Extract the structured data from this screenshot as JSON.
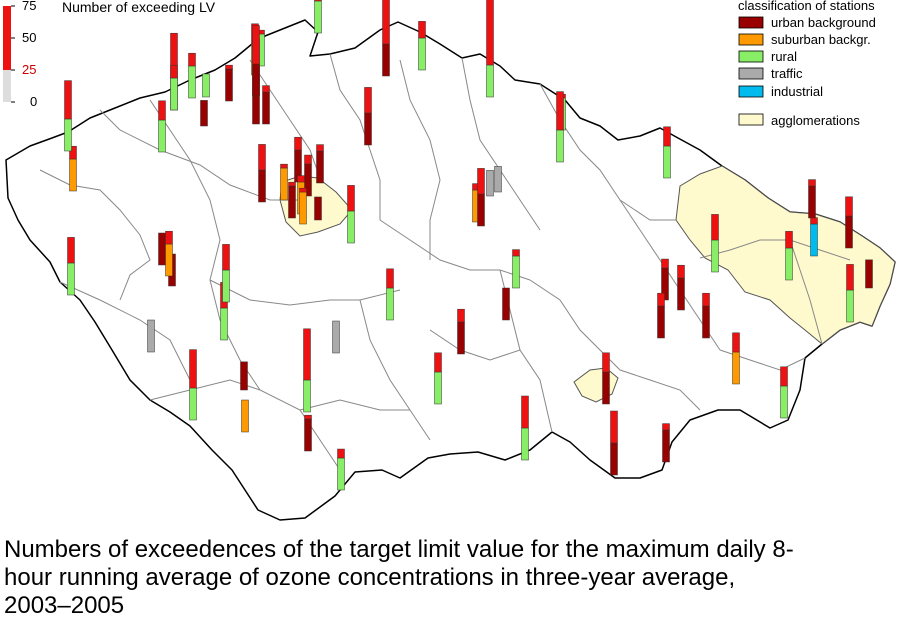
{
  "scale": {
    "title": "Number of exceeding LV",
    "ticks": [
      "75",
      "50",
      "25",
      "0"
    ],
    "threshold": 25,
    "max": 75,
    "colors": {
      "above": "#ee1111",
      "below": "#dddddd",
      "threshold_label": "#cc0000"
    }
  },
  "legend": {
    "title": "classification of stations",
    "items": [
      {
        "label": "urban background",
        "color": "#990000"
      },
      {
        "label": "suburban backgr.",
        "color": "#ff9900"
      },
      {
        "label": "rural",
        "color": "#88ee66"
      },
      {
        "label": "traffic",
        "color": "#aaaaaa"
      },
      {
        "label": "industrial",
        "color": "#00bbee"
      }
    ],
    "agglomerations": {
      "label": "agglomerations",
      "color": "#fffacd"
    }
  },
  "caption": {
    "lines": [
      "Numbers of exceedences of the target limit value for the maximum daily 8-",
      "hour running average of ozone concentrations in three-year average,",
      "2003–2005"
    ]
  },
  "stations": [
    {
      "cls": "rural",
      "value": 70
    },
    {
      "cls": "rural",
      "value": 28
    },
    {
      "cls": "rural",
      "value": 120
    },
    {
      "cls": "urban background",
      "value": 60
    },
    {
      "cls": "rural",
      "value": 38
    },
    {
      "cls": "suburban backgr.",
      "value": 40
    },
    {
      "cls": "urban background",
      "value": 45
    },
    {
      "cls": "urban background",
      "value": 45
    },
    {
      "cls": "urban background",
      "value": 30
    },
    {
      "cls": "urban background",
      "value": 28
    },
    {
      "cls": "rural",
      "value": 60
    },
    {
      "cls": "suburban backgr.",
      "value": 35
    },
    {
      "cls": "rural",
      "value": 55
    },
    {
      "cls": "rural",
      "value": 18
    },
    {
      "cls": "urban background",
      "value": 20
    },
    {
      "cls": "urban background",
      "value": 35
    },
    {
      "cls": "urban background",
      "value": 30
    },
    {
      "cls": "urban background",
      "value": 45
    },
    {
      "cls": "rural",
      "value": 45
    },
    {
      "cls": "suburban backgr.",
      "value": 28
    },
    {
      "cls": "urban background",
      "value": 32
    },
    {
      "cls": "suburban backgr.",
      "value": 30
    },
    {
      "cls": "urban background",
      "value": 28
    },
    {
      "cls": "rural",
      "value": 45
    },
    {
      "cls": "traffic",
      "value": 20
    },
    {
      "cls": "suburban backgr.",
      "value": 30
    },
    {
      "cls": "urban background",
      "value": 45
    },
    {
      "cls": "traffic",
      "value": 20
    },
    {
      "cls": "rural",
      "value": 40
    },
    {
      "cls": "rural",
      "value": 28
    },
    {
      "cls": "urban background",
      "value": 25
    },
    {
      "cls": "rural",
      "value": 30
    },
    {
      "cls": "urban background",
      "value": 45
    },
    {
      "cls": "urban background",
      "value": 32
    },
    {
      "cls": "rural",
      "value": 40
    },
    {
      "cls": "urban background",
      "value": 25
    },
    {
      "cls": "rural",
      "value": 45
    },
    {
      "cls": "rural",
      "value": 40
    },
    {
      "cls": "rural",
      "value": 40
    },
    {
      "cls": "urban background",
      "value": 35
    },
    {
      "cls": "suburban backgr.",
      "value": 28
    },
    {
      "cls": "rural",
      "value": 45
    },
    {
      "cls": "urban background",
      "value": 25
    },
    {
      "cls": "urban background",
      "value": 30
    },
    {
      "cls": "urban background",
      "value": 35
    },
    {
      "cls": "industrial",
      "value": 30
    },
    {
      "cls": "rural",
      "value": 38
    },
    {
      "cls": "urban background",
      "value": 40
    },
    {
      "cls": "rural",
      "value": 45
    },
    {
      "cls": "urban background",
      "value": 22
    },
    {
      "cls": "urban background",
      "value": 35
    },
    {
      "cls": "urban background",
      "value": 35
    },
    {
      "cls": "urban background",
      "value": 30
    },
    {
      "cls": "suburban backgr.",
      "value": 35
    },
    {
      "cls": "rural",
      "value": 45
    },
    {
      "cls": "suburban backgr.",
      "value": 40
    },
    {
      "cls": "rural",
      "value": 32
    },
    {
      "cls": "rural",
      "value": 55
    },
    {
      "cls": "urban background",
      "value": 50
    },
    {
      "cls": "traffic",
      "value": 25
    },
    {
      "cls": "rural",
      "value": 35
    },
    {
      "cls": "rural",
      "value": 35
    },
    {
      "cls": "urban background",
      "value": 22
    },
    {
      "cls": "rural",
      "value": 65
    },
    {
      "cls": "urban background",
      "value": 28
    },
    {
      "cls": "rural",
      "value": 50
    },
    {
      "cls": "suburban backgr.",
      "value": 25
    },
    {
      "cls": "urban background",
      "value": 40
    },
    {
      "cls": "rural",
      "value": 40
    },
    {
      "cls": "traffic",
      "value": 25
    },
    {
      "cls": "urban background",
      "value": 18
    },
    {
      "cls": "rural",
      "value": 55
    },
    {
      "cls": "urban background",
      "value": 55
    }
  ]
}
